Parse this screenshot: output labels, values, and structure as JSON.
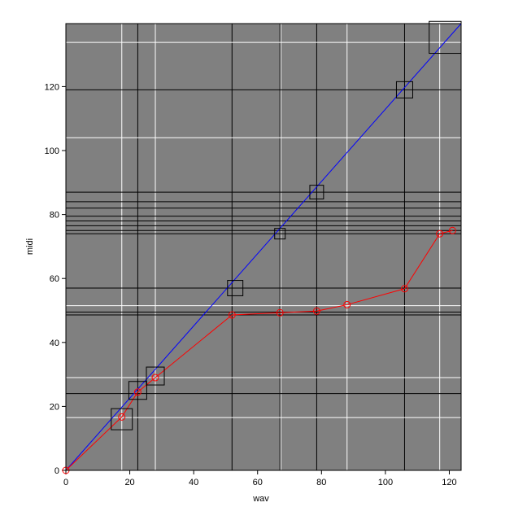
{
  "chart_data": {
    "type": "line",
    "xlabel": "wav",
    "ylabel": "midi",
    "xlim": [
      0,
      123.7
    ],
    "ylim": [
      0,
      139.7
    ],
    "xticks": [
      0,
      20,
      40,
      60,
      80,
      100,
      120
    ],
    "yticks": [
      0,
      20,
      40,
      60,
      80,
      100,
      120
    ],
    "background": "#808080",
    "vlines": [
      {
        "color": "#000000",
        "values": [
          22.5,
          52,
          67,
          78.5,
          106
        ]
      },
      {
        "color": "#ffffff",
        "values": [
          17.5,
          28,
          67.3,
          88,
          117
        ]
      }
    ],
    "hlines": [
      {
        "color": "#000000",
        "values": [
          24,
          48.6,
          49.5,
          57,
          74,
          75,
          76.5,
          78,
          79.5,
          82,
          84,
          87,
          119
        ]
      },
      {
        "color": "#ffffff",
        "values": [
          16.5,
          29,
          51.5,
          104,
          133.8
        ]
      }
    ],
    "series": [
      {
        "color": "#0000ff",
        "marker": "none",
        "line": true,
        "x": [
          0,
          123.7
        ],
        "values": [
          0,
          139.7
        ]
      },
      {
        "color": "#ff0000",
        "marker": "circle",
        "line": true,
        "x": [
          0,
          17.5,
          22.5,
          28,
          52,
          67,
          78.5,
          88,
          106,
          117,
          121
        ],
        "values": [
          0,
          16.7,
          24.5,
          29,
          48.6,
          49.3,
          49.8,
          51.8,
          56.8,
          74,
          75
        ]
      },
      {
        "color": "#000000",
        "marker": "square",
        "line": false,
        "x": [
          17.5,
          22.5,
          28,
          53,
          67,
          78.5,
          106,
          118.7
        ],
        "values": [
          16,
          25,
          29.5,
          57,
          74,
          87,
          119,
          135.4
        ],
        "sizes": [
          6.6,
          5.6,
          5.6,
          4.8,
          3.3,
          4.3,
          5.1,
          10
        ]
      }
    ]
  }
}
